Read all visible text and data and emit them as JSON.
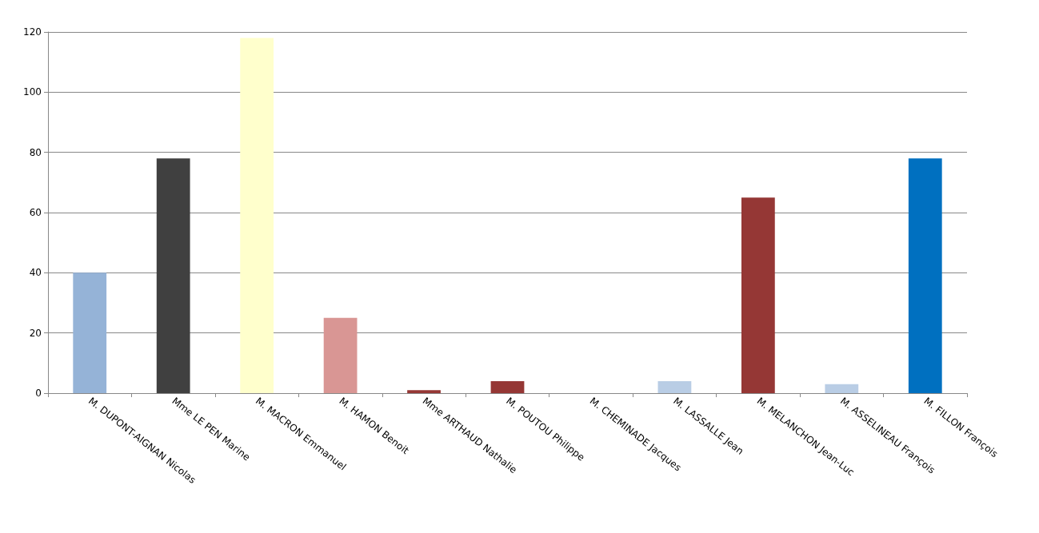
{
  "chart_data": {
    "type": "bar",
    "categories": [
      "M. DUPONT-AIGNAN Nicolas",
      "Mme LE PEN Marine",
      "M. MACRON Emmanuel",
      "M. HAMON Benoit",
      "Mme ARTHAUD Nathalie",
      "M. POUTOU Philippe",
      "M. CHEMINADE Jacques",
      "M. LASSALLE Jean",
      "M. MELANCHON Jean-Luc",
      "M. ASSELINEAU François",
      "M. FILLON François"
    ],
    "values": [
      40,
      78,
      118,
      25,
      1,
      4,
      0,
      4,
      65,
      3,
      78
    ],
    "colors": [
      "#95b3d7",
      "#404040",
      "#ffffcc",
      "#d99694",
      "#953735",
      "#953735",
      "#6f8db5",
      "#b9cde5",
      "#953735",
      "#b9cde5",
      "#0070c0"
    ],
    "ylim": [
      0,
      120
    ],
    "yticks": [
      0,
      20,
      40,
      60,
      80,
      100,
      120
    ],
    "grid": true
  }
}
